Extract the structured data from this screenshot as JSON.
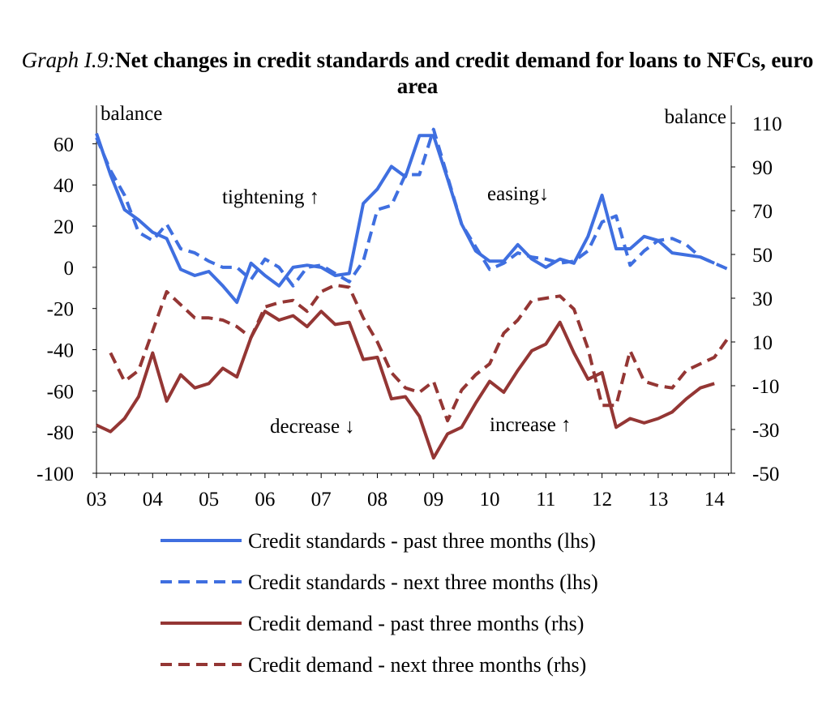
{
  "title": {
    "prefix": "Graph I.9:",
    "main": "Net changes in credit standards and credit demand for loans to NFCs, euro area"
  },
  "chart_data": {
    "type": "line",
    "title": "Graph I.9:Net changes in credit standards and credit demand for loans to NFCs, euro area",
    "x_range": [
      2003.0,
      2014.3
    ],
    "x_ticks": [
      2003,
      2004,
      2005,
      2006,
      2007,
      2008,
      2009,
      2010,
      2011,
      2012,
      2013,
      2014
    ],
    "x_tick_labels": [
      "03",
      "04",
      "05",
      "06",
      "07",
      "08",
      "09",
      "10",
      "11",
      "12",
      "13",
      "14"
    ],
    "y_left": {
      "label": "balance",
      "range": [
        -100,
        70
      ],
      "ticks": [
        60,
        40,
        20,
        0,
        -20,
        -40,
        -60,
        -80,
        -100
      ]
    },
    "y_right": {
      "label": "balance",
      "range": [
        -50,
        110
      ],
      "ticks": [
        110,
        90,
        70,
        50,
        30,
        10,
        -10,
        -30,
        -50
      ]
    },
    "annotations": [
      {
        "text": "tightening ↑"
      },
      {
        "text": "easing↓"
      },
      {
        "text": "decrease ↓"
      },
      {
        "text": "increase ↑"
      }
    ],
    "legend_position": "bottom",
    "series": [
      {
        "name": "Credit standards - past three months (lhs)",
        "axis": "left",
        "style": "solid",
        "color": "#3f6fe0",
        "x": [
          2003.0,
          2003.25,
          2003.5,
          2003.75,
          2004.0,
          2004.25,
          2004.5,
          2004.75,
          2005.0,
          2005.25,
          2005.5,
          2005.75,
          2006.0,
          2006.25,
          2006.5,
          2006.75,
          2007.0,
          2007.25,
          2007.5,
          2007.75,
          2008.0,
          2008.25,
          2008.5,
          2008.75,
          2009.0,
          2009.25,
          2009.5,
          2009.75,
          2010.0,
          2010.25,
          2010.5,
          2010.75,
          2011.0,
          2011.25,
          2011.5,
          2011.75,
          2012.0,
          2012.25,
          2012.5,
          2012.75,
          2013.0,
          2013.25,
          2013.5,
          2013.75,
          2014.0
        ],
        "values": [
          65,
          45,
          28,
          23,
          17,
          14,
          -1,
          -4,
          -2,
          -9,
          -17,
          2,
          -4,
          -9,
          0,
          1,
          0,
          -4,
          -3,
          31,
          38,
          49,
          44,
          64,
          64,
          43,
          21,
          8,
          3,
          3,
          11,
          4,
          0,
          4,
          2,
          15,
          35,
          9,
          9,
          15,
          13,
          7,
          6,
          5,
          2
        ]
      },
      {
        "name": "Credit standards - next three months (lhs)",
        "axis": "left",
        "style": "dashed",
        "color": "#3f6fe0",
        "x": [
          2003.0,
          2003.25,
          2003.5,
          2003.75,
          2004.0,
          2004.25,
          2004.5,
          2004.75,
          2005.0,
          2005.25,
          2005.5,
          2005.75,
          2006.0,
          2006.25,
          2006.5,
          2006.75,
          2007.0,
          2007.25,
          2007.5,
          2007.75,
          2008.0,
          2008.25,
          2008.5,
          2008.75,
          2009.0,
          2009.25,
          2009.5,
          2009.75,
          2010.0,
          2010.25,
          2010.5,
          2010.75,
          2011.0,
          2011.25,
          2011.5,
          2011.75,
          2012.0,
          2012.25,
          2012.5,
          2012.75,
          2013.0,
          2013.25,
          2013.5,
          2013.75,
          2014.0,
          2014.25
        ],
        "values": [
          63,
          47,
          35,
          17,
          13,
          21,
          9,
          7,
          3,
          0,
          0,
          -6,
          4,
          0,
          -9,
          0,
          1,
          -3,
          -7,
          3,
          28,
          30,
          45,
          45,
          67,
          44,
          21,
          10,
          -1,
          2,
          7,
          5,
          4,
          2,
          3,
          8,
          22,
          25,
          1,
          8,
          13,
          14,
          11,
          5,
          2,
          -1
        ]
      },
      {
        "name": "Credit demand - past three months (rhs)",
        "axis": "right",
        "style": "solid",
        "color": "#943634",
        "x": [
          2003.0,
          2003.25,
          2003.5,
          2003.75,
          2004.0,
          2004.25,
          2004.5,
          2004.75,
          2005.0,
          2005.25,
          2005.5,
          2005.75,
          2006.0,
          2006.25,
          2006.5,
          2006.75,
          2007.0,
          2007.25,
          2007.5,
          2007.75,
          2008.0,
          2008.25,
          2008.5,
          2008.75,
          2009.0,
          2009.25,
          2009.5,
          2009.75,
          2010.0,
          2010.25,
          2010.5,
          2010.75,
          2011.0,
          2011.25,
          2011.5,
          2011.75,
          2012.0,
          2012.25,
          2012.5,
          2012.75,
          2013.0,
          2013.25,
          2013.5,
          2013.75,
          2014.0
        ],
        "values": [
          -28,
          -31,
          -25,
          -15,
          5,
          -17,
          -5,
          -11,
          -9,
          -2,
          -6,
          12,
          24,
          20,
          22,
          17,
          24,
          18,
          19,
          2,
          3,
          -16,
          -15,
          -24,
          -43,
          -32,
          -29,
          -18,
          -8,
          -13,
          -3,
          6,
          9,
          19,
          5,
          -7,
          -4,
          -29,
          -25,
          -27,
          -25,
          -22,
          -16,
          -11,
          -9
        ]
      },
      {
        "name": "Credit demand - next three months (rhs)",
        "axis": "right",
        "style": "dashed",
        "color": "#943634",
        "x": [
          2003.25,
          2003.5,
          2003.75,
          2004.0,
          2004.25,
          2004.5,
          2004.75,
          2005.0,
          2005.25,
          2005.5,
          2005.75,
          2006.0,
          2006.25,
          2006.5,
          2006.75,
          2007.0,
          2007.25,
          2007.5,
          2007.75,
          2008.0,
          2008.25,
          2008.5,
          2008.75,
          2009.0,
          2009.25,
          2009.5,
          2009.75,
          2010.0,
          2010.25,
          2010.5,
          2010.75,
          2011.0,
          2011.25,
          2011.5,
          2011.75,
          2012.0,
          2012.25,
          2012.5,
          2012.75,
          2013.0,
          2013.25,
          2013.5,
          2013.75,
          2014.0,
          2014.25
        ],
        "values": [
          5,
          -8,
          -3,
          15,
          33,
          27,
          21,
          21,
          20,
          17,
          12,
          26,
          28,
          29,
          24,
          33,
          36,
          35,
          21,
          10,
          -4,
          -11,
          -13,
          -8,
          -26,
          -12,
          -5,
          0,
          14,
          20,
          29,
          30,
          31,
          25,
          7,
          -19,
          -19,
          6,
          -8,
          -10,
          -11,
          -3,
          0,
          3,
          12
        ]
      }
    ]
  }
}
